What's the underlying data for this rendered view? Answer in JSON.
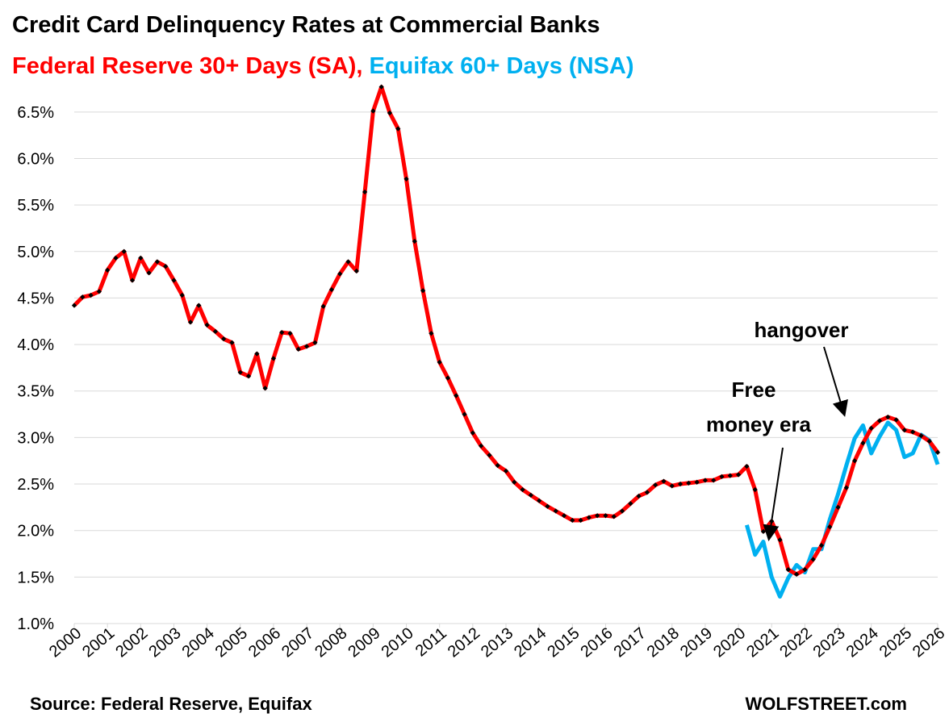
{
  "chart_data": {
    "type": "line",
    "title": "Credit Card Delinquency Rates at Commercial Banks",
    "annotations": [
      "hangover",
      "Free",
      "money era"
    ],
    "source": "Source: Federal Reserve, Equifax",
    "brand": "WOLFSTREET.com",
    "x": [
      2000,
      2000.25,
      2000.5,
      2000.75,
      2001,
      2001.25,
      2001.5,
      2001.75,
      2002,
      2002.25,
      2002.5,
      2002.75,
      2003,
      2003.25,
      2003.5,
      2003.75,
      2004,
      2004.25,
      2004.5,
      2004.75,
      2005,
      2005.25,
      2005.5,
      2005.75,
      2006,
      2006.25,
      2006.5,
      2006.75,
      2007,
      2007.25,
      2007.5,
      2007.75,
      2008,
      2008.25,
      2008.5,
      2008.75,
      2009,
      2009.25,
      2009.5,
      2009.75,
      2010,
      2010.25,
      2010.5,
      2010.75,
      2011,
      2011.25,
      2011.5,
      2011.75,
      2012,
      2012.25,
      2012.5,
      2012.75,
      2013,
      2013.25,
      2013.5,
      2013.75,
      2014,
      2014.25,
      2014.5,
      2014.75,
      2015,
      2015.25,
      2015.5,
      2015.75,
      2016,
      2016.25,
      2016.5,
      2016.75,
      2017,
      2017.25,
      2017.5,
      2017.75,
      2018,
      2018.25,
      2018.5,
      2018.75,
      2019,
      2019.25,
      2019.5,
      2019.75,
      2020,
      2020.25,
      2020.5,
      2020.75,
      2021,
      2021.25,
      2021.5,
      2021.75,
      2022,
      2022.25,
      2022.5,
      2022.75,
      2023,
      2023.25,
      2023.5,
      2023.75,
      2024,
      2024.25,
      2024.5,
      2024.75,
      2025,
      2025.25,
      2025.5,
      2025.75,
      2026
    ],
    "series": [
      {
        "name": "Federal Reserve 30+ Days (SA),",
        "color": "#ff0000",
        "markers": true,
        "values": [
          4.42,
          4.51,
          4.53,
          4.57,
          4.8,
          4.93,
          5.0,
          4.69,
          4.93,
          4.77,
          4.89,
          4.84,
          4.69,
          4.53,
          4.24,
          4.42,
          4.21,
          4.14,
          4.06,
          4.02,
          3.7,
          3.66,
          3.9,
          3.53,
          3.85,
          4.13,
          4.12,
          3.95,
          3.98,
          4.02,
          4.41,
          4.59,
          4.76,
          4.89,
          4.79,
          5.64,
          6.51,
          6.77,
          6.49,
          6.32,
          5.78,
          5.11,
          4.58,
          4.12,
          3.81,
          3.64,
          3.45,
          3.25,
          3.05,
          2.91,
          2.81,
          2.7,
          2.64,
          2.52,
          2.44,
          2.38,
          2.32,
          2.26,
          2.21,
          2.16,
          2.11,
          2.11,
          2.14,
          2.16,
          2.16,
          2.15,
          2.21,
          2.29,
          2.37,
          2.41,
          2.49,
          2.53,
          2.48,
          2.5,
          2.51,
          2.52,
          2.54,
          2.54,
          2.58,
          2.59,
          2.6,
          2.69,
          2.44,
          1.99,
          2.1,
          1.9,
          1.58,
          1.53,
          1.58,
          1.69,
          1.84,
          2.04,
          2.25,
          2.46,
          2.75,
          2.94,
          3.1,
          3.18,
          3.22,
          3.19,
          3.08,
          3.06,
          3.02,
          2.96,
          2.84
        ]
      },
      {
        "name": "Equifax 60+ Days (NSA)",
        "color": "#00b0f0",
        "markers": false,
        "values": [
          null,
          null,
          null,
          null,
          null,
          null,
          null,
          null,
          null,
          null,
          null,
          null,
          null,
          null,
          null,
          null,
          null,
          null,
          null,
          null,
          null,
          null,
          null,
          null,
          null,
          null,
          null,
          null,
          null,
          null,
          null,
          null,
          null,
          null,
          null,
          null,
          null,
          null,
          null,
          null,
          null,
          null,
          null,
          null,
          null,
          null,
          null,
          null,
          null,
          null,
          null,
          null,
          null,
          null,
          null,
          null,
          null,
          null,
          null,
          null,
          null,
          null,
          null,
          null,
          null,
          null,
          null,
          null,
          null,
          null,
          null,
          null,
          null,
          null,
          null,
          null,
          null,
          null,
          null,
          null,
          null,
          2.06,
          1.74,
          1.88,
          1.5,
          1.29,
          1.49,
          1.63,
          1.55,
          1.8,
          1.8,
          2.12,
          2.39,
          2.7,
          2.99,
          3.13,
          2.83,
          3.01,
          3.16,
          3.08,
          2.79,
          2.83,
          3.03,
          2.97,
          2.71
        ]
      }
    ],
    "xlim": [
      2000,
      2026
    ],
    "xticks": [
      2000,
      2001,
      2002,
      2003,
      2004,
      2005,
      2006,
      2007,
      2008,
      2009,
      2010,
      2011,
      2012,
      2013,
      2014,
      2015,
      2016,
      2017,
      2018,
      2019,
      2020,
      2021,
      2022,
      2023,
      2024,
      2025,
      2026
    ],
    "ylim": [
      1.0,
      6.75
    ],
    "yticks": [
      {
        "value": 1.0,
        "label": "1.0%"
      },
      {
        "value": 1.5,
        "label": "1.5%"
      },
      {
        "value": 2.0,
        "label": "2.0%"
      },
      {
        "value": 2.5,
        "label": "2.5%"
      },
      {
        "value": 3.0,
        "label": "3.0%"
      },
      {
        "value": 3.5,
        "label": "3.5%"
      },
      {
        "value": 4.0,
        "label": "4.0%"
      },
      {
        "value": 4.5,
        "label": "4.5%"
      },
      {
        "value": 5.0,
        "label": "5.0%"
      },
      {
        "value": 5.5,
        "label": "5.5%"
      },
      {
        "value": 6.0,
        "label": "6.0%"
      },
      {
        "value": 6.5,
        "label": "6.5%"
      }
    ],
    "grid": true
  }
}
